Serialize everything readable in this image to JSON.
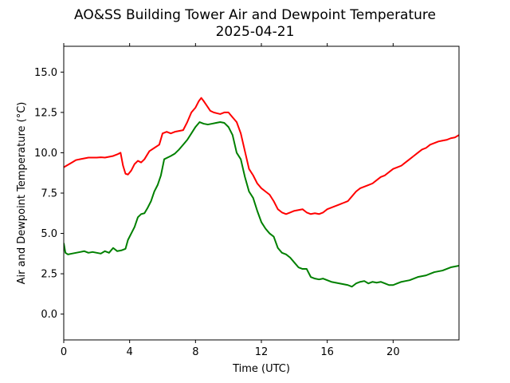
{
  "chart_data": {
    "type": "line",
    "title": "AO&SS Building Tower Air and Dewpoint Temperature",
    "subtitle": "2025-04-21",
    "xlabel": "Time (UTC)",
    "ylabel": "Air and Dewpoint Temperature (°C)",
    "xlim": [
      0,
      24
    ],
    "ylim": [
      -1.6,
      16.6
    ],
    "grid": false,
    "x_ticks": [
      0,
      4,
      8,
      12,
      16,
      20
    ],
    "x_tick_labels": [
      "0",
      "4",
      "8",
      "12",
      "16",
      "20"
    ],
    "y_ticks": [
      0.0,
      2.5,
      5.0,
      7.5,
      10.0,
      12.5,
      15.0
    ],
    "y_tick_labels": [
      "0.0",
      "2.5",
      "5.0",
      "7.5",
      "10.0",
      "12.5",
      "15.0"
    ],
    "series": [
      {
        "color": "#ff0000",
        "x": [
          0,
          0.25,
          0.5,
          0.75,
          1.0,
          1.25,
          1.5,
          1.75,
          2.0,
          2.25,
          2.5,
          2.75,
          3.0,
          3.25,
          3.45,
          3.6,
          3.75,
          3.9,
          4.1,
          4.3,
          4.5,
          4.7,
          4.9,
          5.2,
          5.5,
          5.8,
          6.0,
          6.25,
          6.5,
          6.75,
          7.0,
          7.25,
          7.5,
          7.75,
          8.0,
          8.2,
          8.35,
          8.5,
          8.7,
          8.9,
          9.1,
          9.3,
          9.5,
          9.75,
          10.0,
          10.25,
          10.5,
          10.75,
          11.0,
          11.25,
          11.5,
          11.75,
          12.0,
          12.25,
          12.5,
          12.75,
          13.0,
          13.25,
          13.5,
          13.75,
          14.0,
          14.25,
          14.5,
          14.75,
          15.0,
          15.25,
          15.5,
          15.75,
          16.0,
          16.25,
          16.5,
          16.75,
          17.0,
          17.25,
          17.5,
          17.75,
          18.0,
          18.25,
          18.5,
          18.75,
          19.0,
          19.25,
          19.5,
          19.75,
          20.0,
          20.25,
          20.5,
          20.75,
          21.0,
          21.25,
          21.5,
          21.75,
          22.0,
          22.25,
          22.5,
          22.75,
          23.0,
          23.25,
          23.5,
          23.75,
          24.0
        ],
        "y": [
          9.1,
          9.25,
          9.4,
          9.55,
          9.6,
          9.65,
          9.7,
          9.7,
          9.7,
          9.72,
          9.7,
          9.75,
          9.8,
          9.9,
          10.0,
          9.2,
          8.7,
          8.65,
          8.9,
          9.3,
          9.5,
          9.4,
          9.6,
          10.1,
          10.3,
          10.5,
          11.2,
          11.3,
          11.2,
          11.3,
          11.35,
          11.4,
          11.9,
          12.5,
          12.8,
          13.2,
          13.4,
          13.2,
          12.9,
          12.6,
          12.5,
          12.45,
          12.4,
          12.5,
          12.5,
          12.2,
          11.9,
          11.2,
          10.1,
          9.0,
          8.6,
          8.1,
          7.8,
          7.6,
          7.4,
          7.0,
          6.5,
          6.3,
          6.2,
          6.3,
          6.4,
          6.45,
          6.5,
          6.3,
          6.2,
          6.25,
          6.2,
          6.3,
          6.5,
          6.6,
          6.7,
          6.8,
          6.9,
          7.0,
          7.3,
          7.6,
          7.8,
          7.9,
          8.0,
          8.1,
          8.3,
          8.5,
          8.6,
          8.8,
          9.0,
          9.1,
          9.2,
          9.4,
          9.6,
          9.8,
          10.0,
          10.2,
          10.3,
          10.5,
          10.6,
          10.7,
          10.75,
          10.8,
          10.9,
          10.95,
          11.1
        ]
      },
      {
        "color": "#008000",
        "x": [
          0,
          0.1,
          0.25,
          0.5,
          0.75,
          1.0,
          1.25,
          1.5,
          1.75,
          2.0,
          2.25,
          2.5,
          2.75,
          3.0,
          3.25,
          3.5,
          3.75,
          3.9,
          4.1,
          4.3,
          4.5,
          4.7,
          4.9,
          5.1,
          5.3,
          5.5,
          5.7,
          5.9,
          6.1,
          6.3,
          6.5,
          6.75,
          7.0,
          7.25,
          7.5,
          7.75,
          8.0,
          8.25,
          8.5,
          8.75,
          9.0,
          9.25,
          9.5,
          9.75,
          10.0,
          10.25,
          10.5,
          10.75,
          11.0,
          11.25,
          11.5,
          11.75,
          12.0,
          12.25,
          12.5,
          12.75,
          13.0,
          13.25,
          13.5,
          13.75,
          14.0,
          14.25,
          14.5,
          14.75,
          15.0,
          15.25,
          15.5,
          15.75,
          16.0,
          16.25,
          16.5,
          16.75,
          17.0,
          17.25,
          17.5,
          17.75,
          18.0,
          18.25,
          18.5,
          18.75,
          19.0,
          19.25,
          19.5,
          19.75,
          20.0,
          20.25,
          20.5,
          20.75,
          21.0,
          21.25,
          21.5,
          21.75,
          22.0,
          22.25,
          22.5,
          22.75,
          23.0,
          23.25,
          23.5,
          23.75,
          24.0
        ],
        "y": [
          4.4,
          3.8,
          3.7,
          3.75,
          3.8,
          3.85,
          3.9,
          3.8,
          3.85,
          3.8,
          3.75,
          3.9,
          3.8,
          4.1,
          3.9,
          3.95,
          4.05,
          4.6,
          5.0,
          5.4,
          6.0,
          6.2,
          6.25,
          6.6,
          7.0,
          7.6,
          8.0,
          8.6,
          9.6,
          9.7,
          9.8,
          9.95,
          10.2,
          10.5,
          10.8,
          11.2,
          11.6,
          11.9,
          11.8,
          11.75,
          11.8,
          11.85,
          11.9,
          11.85,
          11.6,
          11.1,
          10.0,
          9.6,
          8.5,
          7.6,
          7.2,
          6.4,
          5.7,
          5.3,
          5.0,
          4.8,
          4.1,
          3.8,
          3.7,
          3.5,
          3.2,
          2.9,
          2.8,
          2.8,
          2.3,
          2.2,
          2.15,
          2.2,
          2.1,
          2.0,
          1.95,
          1.9,
          1.85,
          1.8,
          1.7,
          1.9,
          2.0,
          2.05,
          1.9,
          2.0,
          1.95,
          2.0,
          1.9,
          1.8,
          1.8,
          1.9,
          2.0,
          2.05,
          2.1,
          2.2,
          2.3,
          2.35,
          2.4,
          2.5,
          2.6,
          2.65,
          2.7,
          2.8,
          2.9,
          2.95,
          3.0
        ]
      }
    ]
  }
}
